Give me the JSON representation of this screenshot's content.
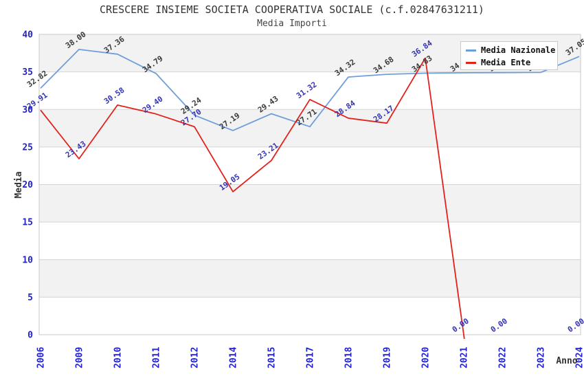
{
  "header": {
    "title": "CRESCERE INSIEME SOCIETA COOPERATIVA SOCIALE (c.f.02847631211)",
    "subtitle": "Media Importi"
  },
  "chart_data": {
    "type": "line",
    "title": "CRESCERE INSIEME SOCIETA COOPERATIVA SOCIALE (c.f.02847631211)",
    "subtitle": "Media Importi",
    "xlabel": "Anno",
    "ylabel": "Media",
    "ylim": [
      0,
      40
    ],
    "yticks": [
      0,
      5,
      10,
      15,
      20,
      25,
      30,
      35,
      40
    ],
    "grid": true,
    "gridline_color": "#d4d4d4",
    "plot_border_color": "#c9c9c9",
    "band_fill_colors": [
      "#ffffff",
      "#f2f2f2"
    ],
    "axis_tick_color": "#2323cc",
    "axis_title_color": "#333333",
    "legend": {
      "position": "top-right",
      "entries": [
        "Media Nazionale",
        "Media Ente"
      ]
    },
    "categories": [
      "2006",
      "2009",
      "2010",
      "2011",
      "2012",
      "2014",
      "2015",
      "2017",
      "2018",
      "2019",
      "2020",
      "2021",
      "2022",
      "2023",
      "2024"
    ],
    "series": [
      {
        "name": "Media Nazionale",
        "color": "#6d9edb",
        "label_color": "#3a3a3a",
        "values": [
          32.82,
          38.0,
          37.36,
          34.79,
          29.24,
          27.19,
          29.43,
          27.71,
          34.32,
          34.68,
          34.83,
          34.88,
          34.9,
          34.93,
          37.05
        ],
        "labels": [
          "32.82",
          "38.00",
          "37.36",
          "34.79",
          "29.24",
          "27.19",
          "29.43",
          "27.71",
          "34.32",
          "34.68",
          "34.83",
          "34.88",
          "34.90",
          "34.93",
          "37.05"
        ]
      },
      {
        "name": "Media Ente",
        "color": "#e2201c",
        "label_color": "#3434b8",
        "values": [
          29.91,
          23.43,
          30.58,
          29.4,
          27.7,
          19.05,
          23.21,
          31.32,
          28.84,
          28.17,
          36.84,
          0.0,
          0.0,
          null,
          0.0
        ],
        "labels": [
          "29.91",
          "23.43",
          "30.58",
          "29.40",
          "27.70",
          "19.05",
          "23.21",
          "31.32",
          "28.84",
          "28.17",
          "36.84",
          "0.00",
          "0.00",
          null,
          "0.00"
        ],
        "line_end_category": "2021"
      }
    ]
  }
}
